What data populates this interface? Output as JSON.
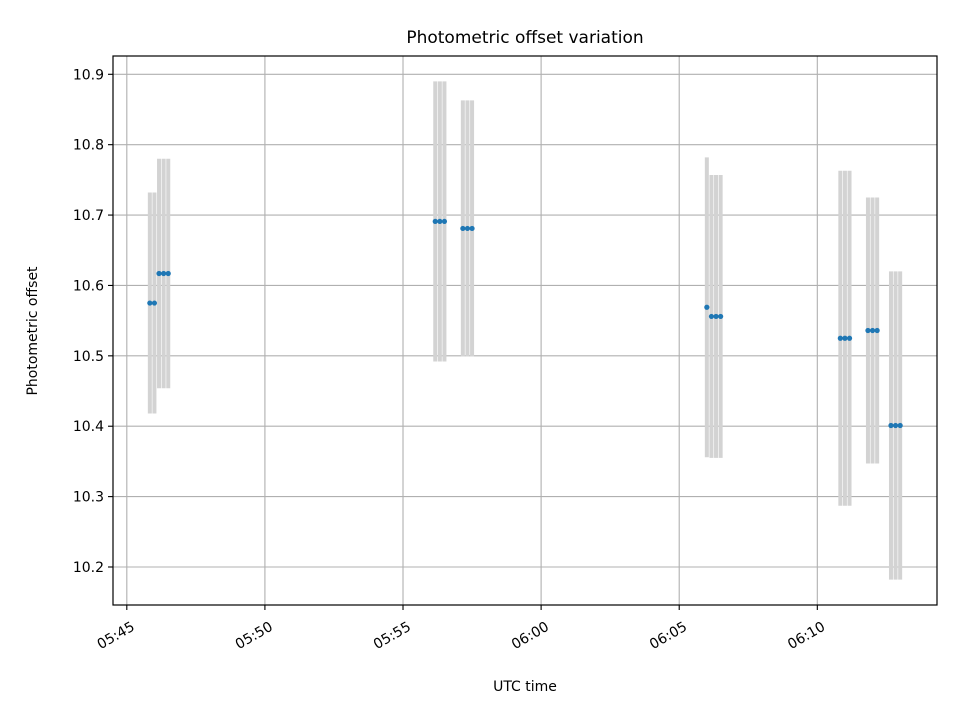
{
  "chart_data": {
    "type": "scatter",
    "title": "Photometric offset variation",
    "xlabel": "UTC time",
    "ylabel": "Photometric offset",
    "x_ticks": [
      "05:45",
      "05:50",
      "05:55",
      "06:00",
      "06:05",
      "06:10"
    ],
    "y_ticks": [
      "10.2",
      "10.3",
      "10.4",
      "10.5",
      "10.6",
      "10.7",
      "10.8",
      "10.9"
    ],
    "xlim": [
      "05:44:30",
      "06:14:20"
    ],
    "ylim": [
      10.146,
      10.926
    ],
    "grid": true,
    "colors": {
      "points": "#1f77b4",
      "error_bars": "#d3d3d3",
      "grid": "#b0b0b0"
    },
    "series": [
      {
        "points": [
          {
            "x": "05:45:50",
            "y": 10.575,
            "err": 0.157
          },
          {
            "x": "05:46:00",
            "y": 10.575,
            "err": 0.157
          },
          {
            "x": "05:46:10",
            "y": 10.617,
            "err": 0.163
          },
          {
            "x": "05:46:20",
            "y": 10.617,
            "err": 0.163
          },
          {
            "x": "05:46:30",
            "y": 10.617,
            "err": 0.163
          },
          {
            "x": "05:56:10",
            "y": 10.691,
            "err": 0.199
          },
          {
            "x": "05:56:20",
            "y": 10.691,
            "err": 0.199
          },
          {
            "x": "05:56:30",
            "y": 10.691,
            "err": 0.199
          },
          {
            "x": "05:57:10",
            "y": 10.681,
            "err": 0.182
          },
          {
            "x": "05:57:20",
            "y": 10.681,
            "err": 0.182
          },
          {
            "x": "05:57:30",
            "y": 10.681,
            "err": 0.182
          },
          {
            "x": "06:06:00",
            "y": 10.569,
            "err": 0.213
          },
          {
            "x": "06:06:10",
            "y": 10.556,
            "err": 0.201
          },
          {
            "x": "06:06:20",
            "y": 10.556,
            "err": 0.201
          },
          {
            "x": "06:06:30",
            "y": 10.556,
            "err": 0.201
          },
          {
            "x": "06:10:50",
            "y": 10.525,
            "err": 0.238
          },
          {
            "x": "06:11:00",
            "y": 10.525,
            "err": 0.238
          },
          {
            "x": "06:11:10",
            "y": 10.525,
            "err": 0.238
          },
          {
            "x": "06:11:50",
            "y": 10.536,
            "err": 0.189
          },
          {
            "x": "06:12:00",
            "y": 10.536,
            "err": 0.189
          },
          {
            "x": "06:12:10",
            "y": 10.536,
            "err": 0.189
          },
          {
            "x": "06:12:40",
            "y": 10.401,
            "err": 0.219
          },
          {
            "x": "06:12:50",
            "y": 10.401,
            "err": 0.219
          },
          {
            "x": "06:13:00",
            "y": 10.401,
            "err": 0.219
          }
        ]
      }
    ]
  }
}
